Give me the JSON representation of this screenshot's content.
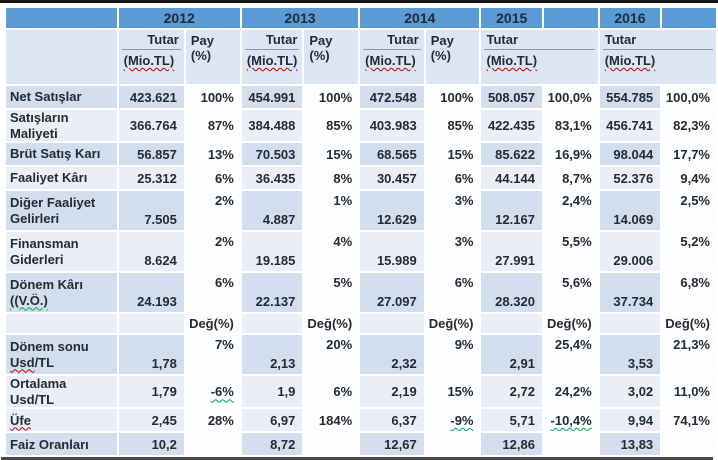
{
  "colors": {
    "year_header_bg": "#5B9BD5",
    "subheader_bg": "#DCE6F2",
    "stripe_dark": "#D2DDED",
    "stripe_light": "#EAEFF7",
    "pay_cell_bg": "#FCFDFE",
    "text": "#232B35",
    "header_underline": "#8C9BAC",
    "squiggle_red": "#C00000",
    "squiggle_green": "#00A64F",
    "top_rule": "#161616",
    "bottom_rule": "#4A4A4A"
  },
  "table": {
    "corner_label": "",
    "tutar_label": "Tutar",
    "unit_label": "(Mio.TL)",
    "deg_label": "Değ(%)",
    "groups": [
      {
        "year": "2012",
        "pay_label": "Pay (%)",
        "split_header": true
      },
      {
        "year": "2013",
        "pay_label": "Pay (%)",
        "split_header": true
      },
      {
        "year": "2014",
        "pay_label": "Pay (%)",
        "split_header": true
      },
      {
        "year": "2015",
        "pay_label": "",
        "split_header": false
      },
      {
        "year": "2016",
        "pay_label": "",
        "split_header": false
      }
    ],
    "rows": [
      {
        "label": {
          "lines": [
            {
              "t": "Net Satışlar"
            }
          ]
        },
        "cells": [
          "423.621",
          "100%",
          "454.991",
          "100%",
          "472.548",
          "100%",
          "508.057",
          "100,0%",
          "554.785",
          "100,0%"
        ]
      },
      {
        "label": {
          "lines": [
            {
              "t": "Satışların Maliyeti"
            }
          ]
        },
        "cells": [
          "366.764",
          "87%",
          "384.488",
          "85%",
          "403.983",
          "85%",
          "422.435",
          "83,1%",
          "456.741",
          "82,3%"
        ]
      },
      {
        "label": {
          "lines": [
            {
              "t": "Brüt Satış Karı"
            }
          ]
        },
        "cells": [
          "56.857",
          "13%",
          "70.503",
          "15%",
          "68.565",
          "15%",
          "85.622",
          "16,9%",
          "98.044",
          "17,7%"
        ]
      },
      {
        "label": {
          "lines": [
            {
              "t": "Faaliyet Kârı"
            }
          ]
        },
        "cells": [
          "25.312",
          "6%",
          "36.435",
          "8%",
          "30.457",
          "6%",
          "44.144",
          "8,7%",
          "52.376",
          "9,4%"
        ]
      },
      {
        "label": {
          "lines": [
            {
              "t": "Diğer Faaliyet"
            },
            {
              "t": "Gelirleri"
            }
          ]
        },
        "tall": true,
        "cells": [
          "7.505",
          "2%",
          "4.887",
          "1%",
          "12.629",
          "3%",
          "12.167",
          "2,4%",
          "14.069",
          "2,5%"
        ]
      },
      {
        "label": {
          "lines": [
            {
              "t": "Finansman"
            },
            {
              "t": "Giderleri"
            }
          ]
        },
        "tall": true,
        "cells": [
          "8.624",
          "2%",
          "19.185",
          "4%",
          "15.989",
          "3%",
          "27.991",
          "5,5%",
          "29.006",
          "5,2%"
        ]
      },
      {
        "label": {
          "lines": [
            {
              "t": "Dönem Kârı"
            },
            {
              "t": "((V.Ö.)",
              "sq": "((V.Ö.)",
              "sqc": "green"
            }
          ]
        },
        "tall": true,
        "cells": [
          "24.193",
          "6%",
          "22.137",
          "5%",
          "27.097",
          "6%",
          "28.320",
          "5,6%",
          "37.734",
          "6,8%"
        ]
      },
      {
        "label": {
          "lines": [
            {
              "t": ""
            }
          ]
        },
        "deg": true,
        "cells": [
          "",
          "Değ(%)",
          "",
          "Değ(%)",
          "",
          "Değ(%)",
          "",
          "Değ(%)",
          "",
          "Değ(%)"
        ]
      },
      {
        "label": {
          "lines": [
            {
              "t": "Dönem sonu"
            },
            {
              "t": "Usd/TL",
              "sq": "Usd",
              "sqc": "red"
            }
          ]
        },
        "tall": true,
        "cells": [
          "1,78",
          "7%",
          "2,13",
          "20%",
          "2,32",
          "9%",
          "2,91",
          "25,4%",
          "3,53",
          "21,3%"
        ]
      },
      {
        "label": {
          "lines": [
            {
              "t": "Ortalama Usd/TL",
              "sq": "Usd",
              "sqc": "red"
            }
          ]
        },
        "cells": [
          "1,79",
          {
            "v": "-6%",
            "sq": "green"
          },
          "1,9",
          "6%",
          "2,19",
          "15%",
          "2,72",
          "24,2%",
          "3,02",
          "11,0%"
        ]
      },
      {
        "label": {
          "lines": [
            {
              "t": "Üfe",
              "sq": "Üfe",
              "sqc": "red"
            }
          ]
        },
        "cells": [
          "2,45",
          "28%",
          "6,97",
          "184%",
          "6,37",
          {
            "v": "-9%",
            "sq": "green"
          },
          "5,71",
          {
            "v": "-10,4%",
            "sq": "green"
          },
          "9,94",
          "74,1%"
        ]
      },
      {
        "label": {
          "lines": [
            {
              "t": "Faiz Oranları"
            }
          ]
        },
        "cells": [
          "10,2",
          "",
          "8,72",
          "",
          "12,67",
          "",
          "12,86",
          "",
          "13,83",
          ""
        ]
      }
    ]
  }
}
